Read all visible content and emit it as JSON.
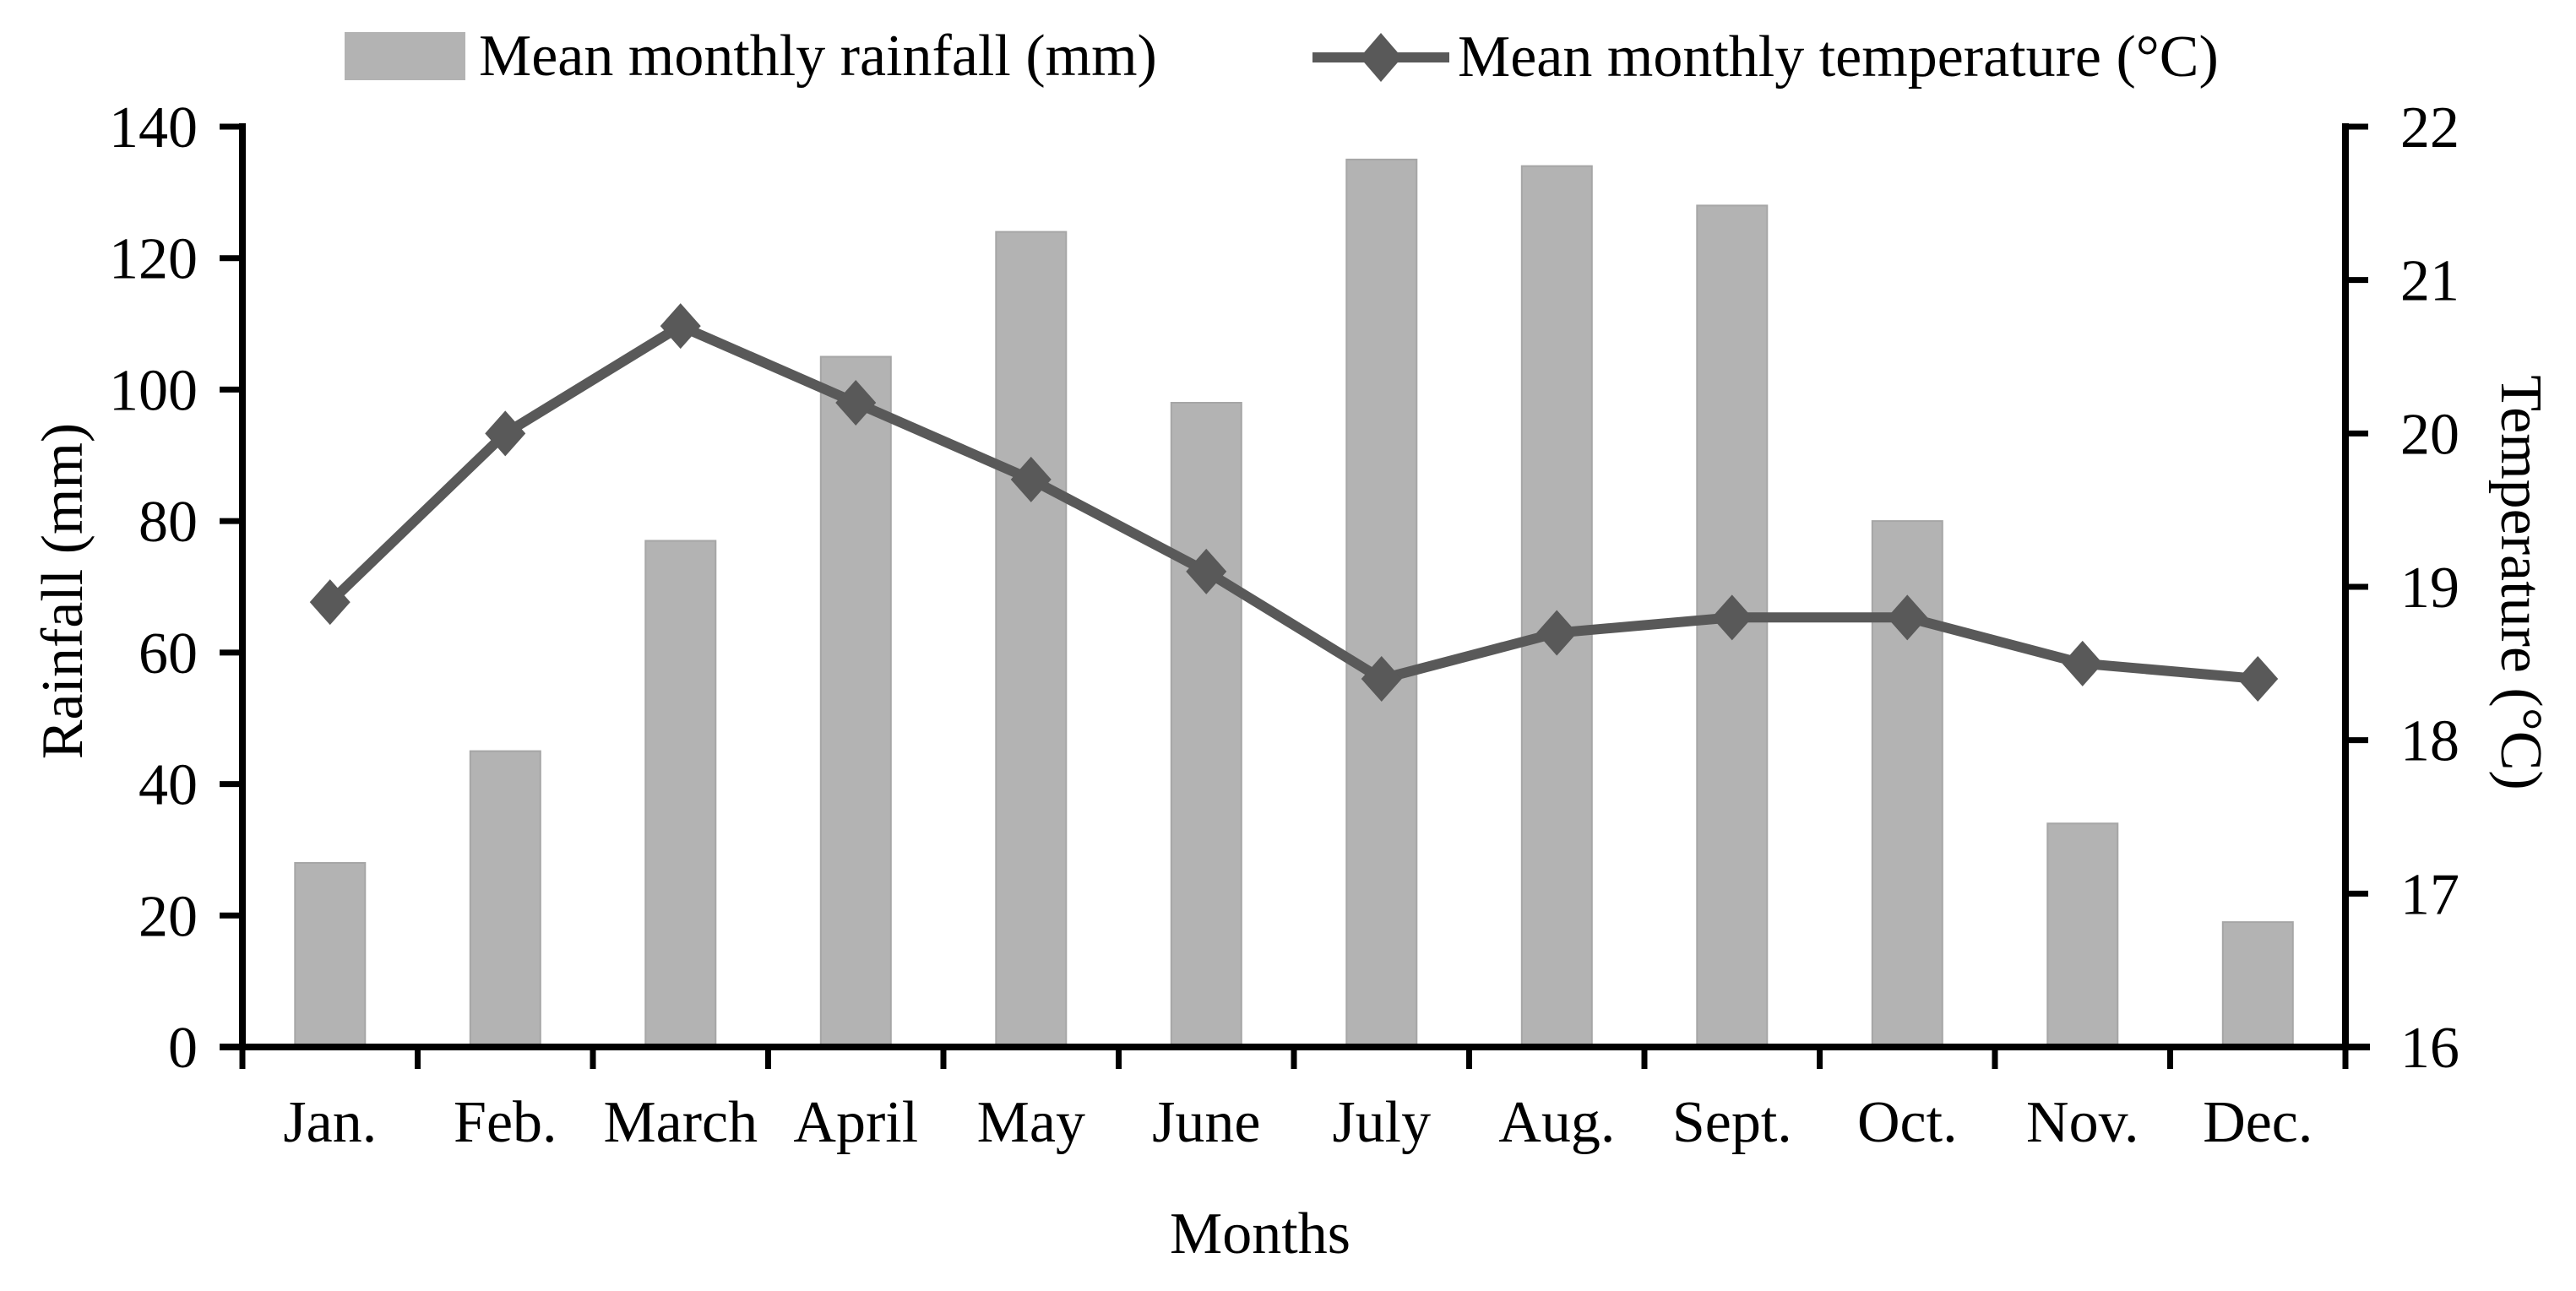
{
  "chart_data": {
    "type": "bar",
    "subtype": "combo-bar-line",
    "title": "",
    "categories": [
      "Jan.",
      "Feb.",
      "March",
      "April",
      "May",
      "June",
      "July",
      "Aug.",
      "Sept.",
      "Oct.",
      "Nov.",
      "Dec."
    ],
    "series": [
      {
        "name": "Mean monthly rainfall (mm)",
        "type": "bar",
        "axis": "left",
        "color": "#b3b3b3",
        "values": [
          28,
          45,
          77,
          105,
          124,
          98,
          135,
          134,
          128,
          80,
          34,
          19
        ]
      },
      {
        "name": "Mean monthly temperature (°C)",
        "type": "line",
        "axis": "right",
        "color": "#595959",
        "marker": "diamond",
        "values": [
          18.9,
          20.0,
          20.7,
          20.2,
          19.7,
          19.1,
          18.4,
          18.7,
          18.8,
          18.8,
          18.5,
          18.4
        ]
      }
    ],
    "xlabel": "Months",
    "ylabel_left": "Rainfall (mm)",
    "ylabel_right": "Temperature (°C)",
    "ylim_left": [
      0,
      140
    ],
    "ytick_step_left": 20,
    "ylim_right": [
      16,
      22
    ],
    "ytick_step_right": 1,
    "grid": false,
    "legend_position": "top",
    "colors": {
      "bar": "#b3b3b3",
      "bar_edge": "#a6a6a6",
      "line": "#595959",
      "axis": "#000000",
      "text": "#000000",
      "background": "#ffffff"
    }
  }
}
